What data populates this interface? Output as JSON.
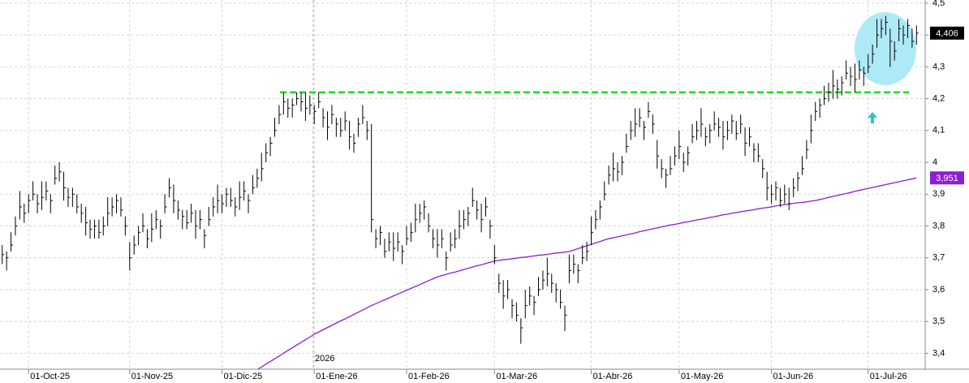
{
  "chart_data": {
    "type": "ohlc",
    "year_label": "2026",
    "categories": [
      null,
      null,
      null,
      null,
      null,
      null,
      "01-Oct-25",
      null,
      null,
      null,
      null,
      null,
      null,
      null,
      null,
      null,
      null,
      null,
      null,
      null,
      null,
      null,
      null,
      null,
      null,
      null,
      null,
      null,
      null,
      "01-Nov-25",
      null,
      null,
      null,
      null,
      null,
      null,
      null,
      null,
      null,
      null,
      null,
      null,
      null,
      null,
      null,
      null,
      null,
      null,
      null,
      null,
      "01-Dic-25",
      null,
      null,
      null,
      null,
      null,
      null,
      null,
      null,
      null,
      null,
      null,
      null,
      null,
      null,
      null,
      null,
      null,
      null,
      null,
      null,
      "01-Ene-26",
      null,
      null,
      null,
      null,
      null,
      null,
      null,
      null,
      null,
      null,
      null,
      null,
      null,
      null,
      null,
      null,
      null,
      null,
      null,
      null,
      "01-Feb-26",
      null,
      null,
      null,
      null,
      null,
      null,
      null,
      null,
      null,
      null,
      null,
      null,
      null,
      null,
      null,
      null,
      null,
      null,
      null,
      "01-Mar-26",
      null,
      null,
      null,
      null,
      null,
      null,
      null,
      null,
      null,
      null,
      null,
      null,
      null,
      null,
      null,
      null,
      null,
      null,
      null,
      null,
      null,
      "01-Abr-26",
      null,
      null,
      null,
      null,
      null,
      null,
      null,
      null,
      null,
      null,
      null,
      null,
      null,
      null,
      null,
      null,
      null,
      null,
      null,
      "01-May-26",
      null,
      null,
      null,
      null,
      null,
      null,
      null,
      null,
      null,
      null,
      null,
      null,
      null,
      null,
      null,
      null,
      null,
      null,
      null,
      null,
      "01-Jun-26",
      null,
      null,
      null,
      null,
      null,
      null,
      null,
      null,
      null,
      null,
      null,
      null,
      null,
      null,
      null,
      null,
      null,
      null,
      null,
      null,
      null,
      "01-Jul-26",
      null,
      null,
      null,
      null,
      null,
      null,
      null,
      null,
      null,
      null,
      null
    ],
    "ohlc": {
      "color": "#000000",
      "last_label": "4,406",
      "label_color": "#000000",
      "high": [
        3.74,
        3.72,
        3.78,
        3.83,
        3.91,
        3.87,
        3.9,
        3.94,
        3.9,
        3.94,
        3.94,
        3.9,
        3.99,
        4.0,
        3.97,
        3.92,
        3.92,
        3.9,
        3.87,
        3.86,
        3.82,
        3.82,
        3.82,
        3.83,
        3.89,
        3.89,
        3.9,
        3.89,
        3.83,
        3.75,
        3.77,
        3.8,
        3.84,
        3.79,
        3.84,
        3.85,
        3.82,
        3.9,
        3.95,
        3.93,
        3.88,
        3.85,
        3.85,
        3.87,
        3.85,
        3.85,
        3.79,
        3.86,
        3.89,
        3.93,
        3.9,
        3.92,
        3.92,
        3.89,
        3.94,
        3.94,
        3.9,
        3.96,
        3.98,
        4.03,
        4.06,
        4.08,
        4.14,
        4.18,
        4.22,
        4.2,
        4.2,
        4.22,
        4.22,
        4.22,
        4.21,
        4.18,
        4.22,
        4.17,
        4.16,
        4.18,
        4.14,
        4.14,
        4.16,
        4.13,
        4.09,
        4.14,
        4.18,
        4.13,
        4.12,
        3.79,
        3.8,
        3.76,
        3.78,
        3.78,
        3.78,
        3.74,
        3.8,
        3.81,
        3.87,
        3.87,
        3.88,
        3.84,
        3.79,
        3.79,
        3.79,
        3.72,
        3.78,
        3.79,
        3.85,
        3.85,
        3.86,
        3.92,
        3.88,
        3.87,
        3.89,
        3.82,
        3.74,
        3.65,
        3.63,
        3.63,
        3.57,
        3.56,
        3.51,
        3.6,
        3.61,
        3.58,
        3.64,
        3.66,
        3.7,
        3.65,
        3.62,
        3.6,
        3.55,
        3.71,
        3.71,
        3.68,
        3.74,
        3.75,
        3.83,
        3.85,
        3.88,
        3.94,
        3.99,
        4.03,
        4.0,
        4.02,
        4.09,
        4.13,
        4.17,
        4.17,
        4.13,
        4.19,
        4.15,
        4.07,
        4.01,
        3.98,
        4.02,
        4.05,
        4.1,
        4.03,
        4.05,
        4.12,
        4.13,
        4.17,
        4.11,
        4.12,
        4.16,
        4.14,
        4.13,
        4.13,
        4.15,
        4.13,
        4.15,
        4.11,
        4.11,
        4.06,
        4.06,
        4.01,
        3.97,
        3.93,
        3.94,
        3.92,
        3.93,
        3.92,
        3.95,
        3.97,
        4.02,
        4.07,
        4.15,
        4.19,
        4.2,
        4.24,
        4.25,
        4.29,
        4.26,
        4.27,
        4.32,
        4.3,
        4.31,
        4.32,
        4.3,
        4.34,
        4.37,
        4.45,
        4.45,
        4.46,
        4.42,
        4.38,
        4.45,
        4.43,
        4.45,
        4.42,
        4.43
      ],
      "low": [
        3.68,
        3.66,
        3.72,
        3.77,
        3.82,
        3.81,
        3.84,
        3.88,
        3.84,
        3.85,
        3.88,
        3.84,
        3.93,
        3.94,
        3.88,
        3.86,
        3.86,
        3.84,
        3.81,
        3.77,
        3.76,
        3.76,
        3.76,
        3.77,
        3.8,
        3.83,
        3.84,
        3.83,
        3.77,
        3.66,
        3.71,
        3.74,
        3.78,
        3.73,
        3.75,
        3.79,
        3.76,
        3.84,
        3.89,
        3.84,
        3.82,
        3.79,
        3.79,
        3.81,
        3.76,
        3.79,
        3.73,
        3.8,
        3.83,
        3.84,
        3.84,
        3.86,
        3.86,
        3.83,
        3.85,
        3.88,
        3.84,
        3.9,
        3.92,
        3.94,
        4.0,
        4.02,
        4.08,
        4.12,
        4.15,
        4.14,
        4.14,
        4.18,
        4.16,
        4.13,
        4.15,
        4.12,
        4.17,
        4.11,
        4.07,
        4.12,
        4.08,
        4.08,
        4.1,
        4.04,
        4.03,
        4.08,
        4.12,
        4.07,
        3.78,
        3.73,
        3.74,
        3.7,
        3.72,
        3.69,
        3.72,
        3.68,
        3.74,
        3.75,
        3.78,
        3.81,
        3.82,
        3.78,
        3.73,
        3.7,
        3.73,
        3.66,
        3.72,
        3.73,
        3.76,
        3.79,
        3.8,
        3.86,
        3.82,
        3.78,
        3.83,
        3.76,
        3.68,
        3.59,
        3.54,
        3.57,
        3.51,
        3.5,
        3.43,
        3.51,
        3.55,
        3.52,
        3.58,
        3.6,
        3.61,
        3.59,
        3.56,
        3.54,
        3.47,
        3.62,
        3.65,
        3.62,
        3.68,
        3.69,
        3.74,
        3.79,
        3.82,
        3.88,
        3.93,
        3.94,
        3.94,
        3.96,
        4.03,
        4.07,
        4.08,
        4.11,
        4.07,
        4.14,
        4.09,
        3.98,
        3.95,
        3.92,
        3.96,
        3.99,
        4.01,
        3.97,
        3.99,
        4.06,
        4.07,
        4.08,
        4.05,
        4.06,
        4.1,
        4.08,
        4.04,
        4.07,
        4.09,
        4.07,
        4.09,
        4.02,
        4.05,
        4.0,
        4.0,
        3.95,
        3.88,
        3.87,
        3.88,
        3.86,
        3.87,
        3.85,
        3.89,
        3.91,
        3.96,
        4.01,
        4.06,
        4.13,
        4.14,
        4.18,
        4.19,
        4.2,
        4.2,
        4.21,
        4.26,
        4.24,
        4.22,
        4.26,
        4.24,
        4.28,
        4.31,
        4.36,
        4.39,
        4.4,
        4.3,
        4.32,
        4.38,
        4.37,
        4.39,
        4.36,
        4.37
      ],
      "close": [
        3.71,
        3.7,
        3.74,
        3.8,
        3.86,
        3.84,
        3.88,
        3.9,
        3.87,
        3.89,
        3.91,
        3.88,
        3.95,
        3.97,
        3.92,
        3.89,
        3.9,
        3.86,
        3.84,
        3.81,
        3.79,
        3.8,
        3.78,
        3.8,
        3.84,
        3.86,
        3.88,
        3.85,
        3.8,
        3.7,
        3.74,
        3.78,
        3.8,
        3.76,
        3.79,
        3.82,
        3.8,
        3.86,
        3.92,
        3.88,
        3.85,
        3.83,
        3.81,
        3.84,
        3.8,
        3.82,
        3.77,
        3.82,
        3.86,
        3.88,
        3.87,
        3.9,
        3.88,
        3.86,
        3.89,
        3.91,
        3.88,
        3.92,
        3.95,
        3.98,
        4.03,
        4.06,
        4.1,
        4.15,
        4.19,
        4.17,
        4.18,
        4.2,
        4.19,
        4.17,
        4.18,
        4.16,
        4.19,
        4.14,
        4.11,
        4.15,
        4.12,
        4.1,
        4.13,
        4.08,
        4.06,
        4.12,
        4.14,
        4.1,
        3.82,
        3.76,
        3.78,
        3.72,
        3.75,
        3.73,
        3.75,
        3.72,
        3.76,
        3.78,
        3.82,
        3.84,
        3.86,
        3.8,
        3.76,
        3.74,
        3.76,
        3.7,
        3.74,
        3.76,
        3.8,
        3.82,
        3.84,
        3.88,
        3.85,
        3.82,
        3.86,
        3.8,
        3.7,
        3.62,
        3.58,
        3.6,
        3.55,
        3.52,
        3.48,
        3.55,
        3.58,
        3.56,
        3.6,
        3.63,
        3.65,
        3.62,
        3.6,
        3.56,
        3.52,
        3.66,
        3.68,
        3.66,
        3.7,
        3.72,
        3.78,
        3.82,
        3.86,
        3.9,
        3.96,
        3.98,
        3.97,
        4.0,
        4.05,
        4.1,
        4.12,
        4.14,
        4.11,
        4.16,
        4.12,
        4.02,
        3.98,
        3.96,
        3.98,
        4.02,
        4.05,
        4.0,
        4.03,
        4.08,
        4.1,
        4.12,
        4.08,
        4.1,
        4.12,
        4.11,
        4.08,
        4.1,
        4.13,
        4.09,
        4.12,
        4.06,
        4.08,
        4.04,
        4.02,
        3.98,
        3.92,
        3.9,
        3.92,
        3.88,
        3.9,
        3.87,
        3.92,
        3.95,
        3.98,
        4.04,
        4.1,
        4.16,
        4.18,
        4.2,
        4.22,
        4.24,
        4.23,
        4.25,
        4.28,
        4.27,
        4.26,
        4.29,
        4.28,
        4.3,
        4.34,
        4.4,
        4.42,
        4.44,
        4.38,
        4.35,
        4.42,
        4.4,
        4.43,
        4.38,
        4.406
      ]
    },
    "moving_average": {
      "color": "#8a1fd4",
      "last_label": "3,951",
      "values": [
        null,
        null,
        null,
        null,
        null,
        null,
        null,
        null,
        null,
        null,
        null,
        null,
        null,
        null,
        null,
        null,
        null,
        null,
        null,
        null,
        null,
        null,
        null,
        null,
        null,
        null,
        null,
        null,
        null,
        null,
        null,
        null,
        null,
        null,
        null,
        null,
        null,
        null,
        null,
        null,
        null,
        null,
        null,
        null,
        null,
        null,
        null,
        null,
        null,
        null,
        null,
        null,
        null,
        null,
        null,
        null,
        null,
        3.34,
        3.349,
        3.357,
        3.366,
        3.374,
        3.383,
        3.391,
        3.4,
        3.409,
        3.417,
        3.426,
        3.434,
        3.443,
        3.451,
        3.46,
        3.467,
        3.474,
        3.481,
        3.488,
        3.495,
        3.502,
        3.508,
        3.515,
        3.522,
        3.529,
        3.536,
        3.543,
        3.55,
        3.556,
        3.562,
        3.568,
        3.574,
        3.58,
        3.586,
        3.592,
        3.598,
        3.604,
        3.61,
        3.616,
        3.622,
        3.628,
        3.634,
        3.64,
        3.644,
        3.648,
        3.652,
        3.655,
        3.659,
        3.663,
        3.667,
        3.671,
        3.675,
        3.678,
        3.682,
        3.686,
        3.69,
        3.692,
        3.694,
        3.695,
        3.697,
        3.699,
        3.701,
        3.702,
        3.704,
        3.706,
        3.708,
        3.709,
        3.711,
        3.713,
        3.715,
        3.716,
        3.718,
        3.72,
        3.724,
        3.729,
        3.733,
        3.738,
        3.742,
        3.747,
        3.751,
        3.756,
        3.76,
        3.763,
        3.766,
        3.769,
        3.772,
        3.775,
        3.778,
        3.782,
        3.785,
        3.788,
        3.791,
        3.794,
        3.797,
        3.8,
        3.803,
        3.805,
        3.808,
        3.811,
        3.813,
        3.816,
        3.819,
        3.821,
        3.824,
        3.827,
        3.829,
        3.832,
        3.835,
        3.837,
        3.84,
        3.842,
        3.845,
        3.847,
        3.849,
        3.851,
        3.854,
        3.856,
        3.858,
        3.86,
        3.863,
        3.865,
        3.867,
        3.869,
        3.871,
        3.873,
        3.874,
        3.876,
        3.878,
        3.88,
        3.883,
        3.886,
        3.89,
        3.893,
        3.896,
        3.899,
        3.902,
        3.905,
        3.909,
        3.912,
        3.915,
        3.918,
        3.921,
        3.924,
        3.927,
        3.93,
        3.933,
        3.936,
        3.939,
        3.942,
        3.945,
        3.948,
        3.951
      ]
    },
    "level": {
      "value": 4.22,
      "color": "#22dd22"
    },
    "ylim": [
      3.35,
      4.51
    ],
    "yticks": [
      {
        "value": 3.4,
        "label": "3,4"
      },
      {
        "value": 3.5,
        "label": "3,5"
      },
      {
        "value": 3.6,
        "label": "3,6"
      },
      {
        "value": 3.7,
        "label": "3,7"
      },
      {
        "value": 3.8,
        "label": "3,8"
      },
      {
        "value": 3.9,
        "label": "3,9"
      },
      4,
      {
        "value": 4.1,
        "label": "4,1"
      },
      {
        "value": 4.2,
        "label": "4,2"
      },
      {
        "value": 4.3,
        "label": "4,3"
      },
      {
        "value": 4.4,
        "label": "4,4"
      },
      {
        "value": 4.5,
        "label": "4,5"
      }
    ],
    "grid": true
  }
}
